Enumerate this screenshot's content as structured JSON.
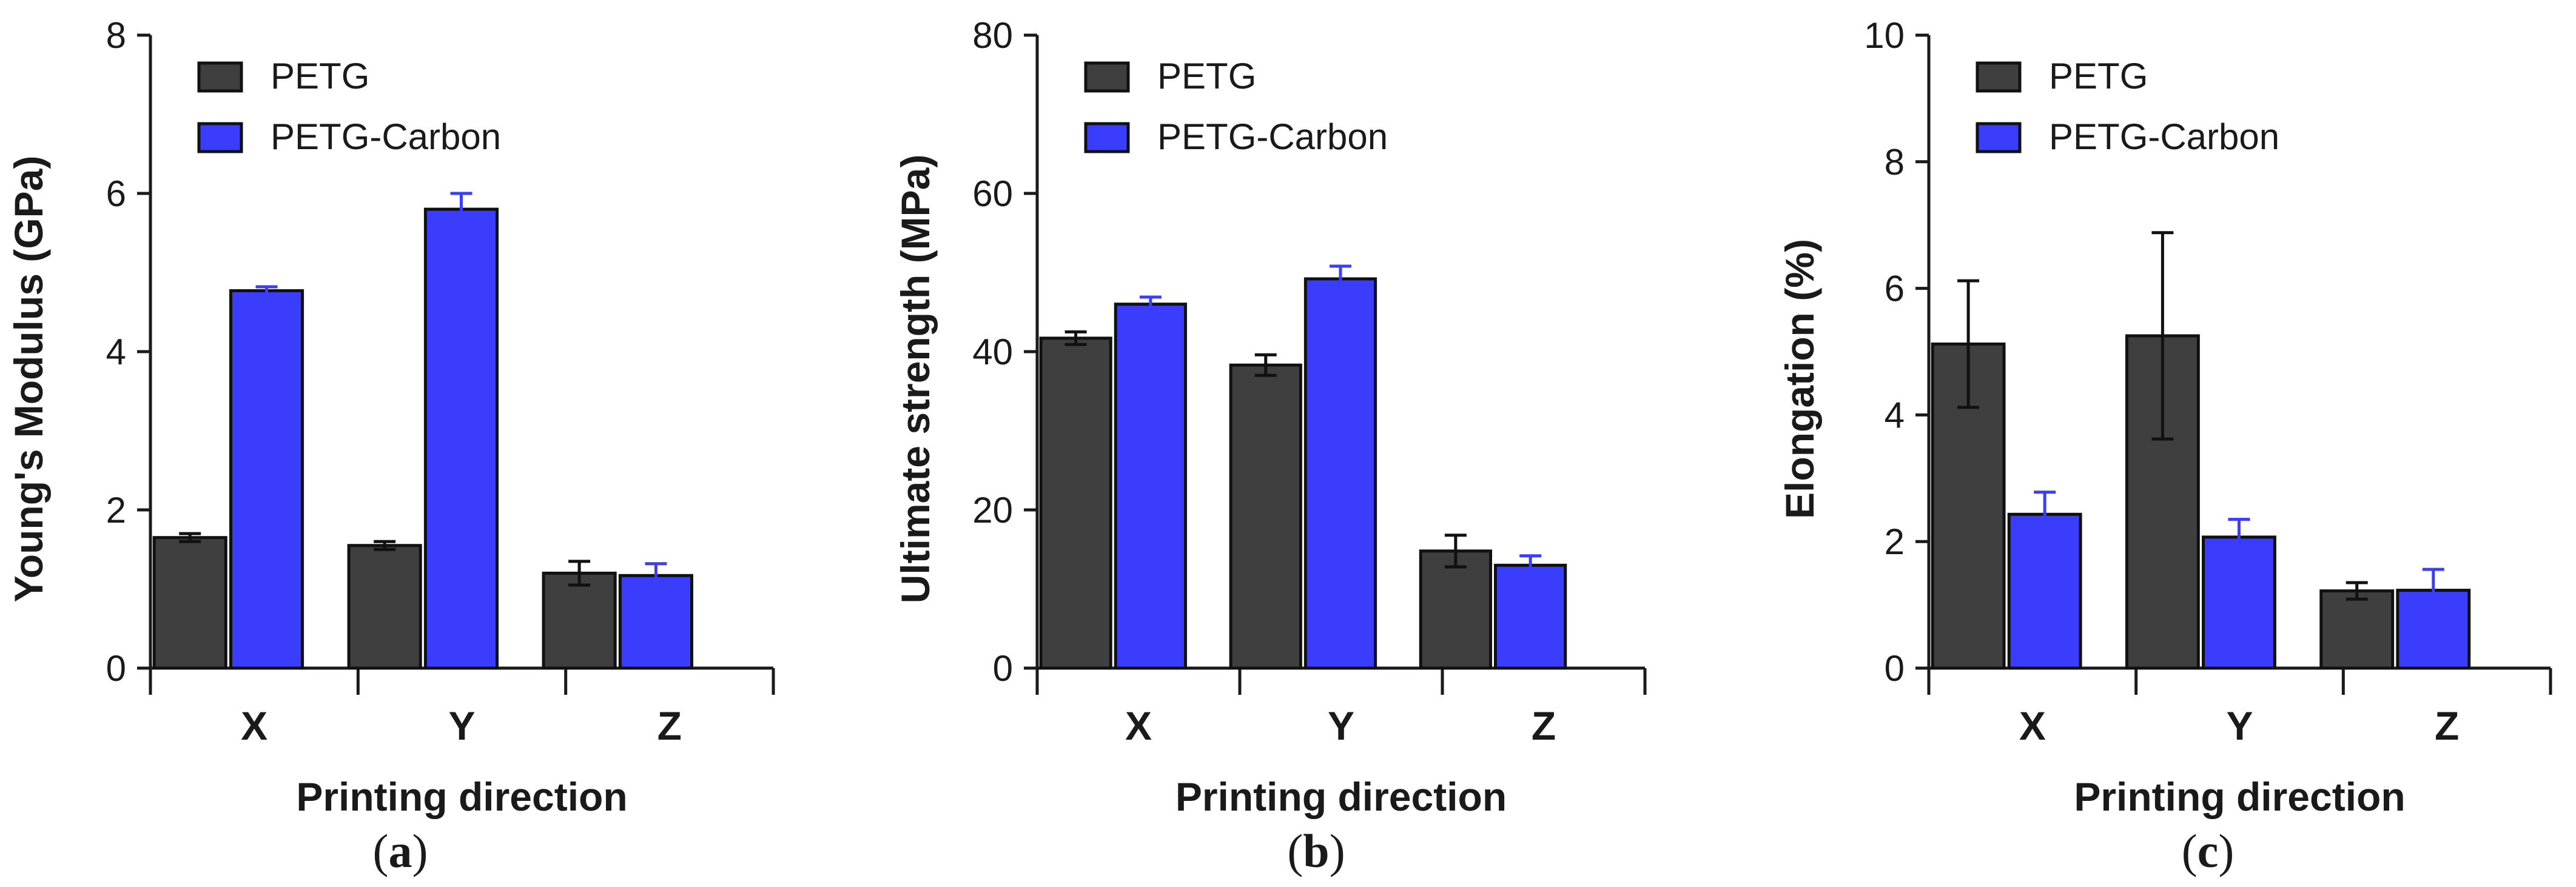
{
  "colors": {
    "PETG": "#3f3f3f",
    "PETG-Carbon": "#3a3dfb",
    "axis": "#1a1a1a"
  },
  "chart_data": [
    {
      "type": "bar",
      "panel": "a",
      "categories": [
        "X",
        "Y",
        "Z"
      ],
      "xlabel": "Printing direction",
      "ylabel": "Young's Modulus (GPa)",
      "ylim": [
        0,
        8
      ],
      "yticks": [
        0,
        2,
        4,
        6,
        8
      ],
      "grid": false,
      "legend_position": "top-left",
      "series": [
        {
          "name": "PETG",
          "values": [
            1.65,
            1.55,
            1.2
          ],
          "errors": [
            0.05,
            0.05,
            0.15
          ]
        },
        {
          "name": "PETG-Carbon",
          "values": [
            4.77,
            5.8,
            1.17
          ],
          "errors": [
            0.05,
            0.2,
            0.15
          ]
        }
      ]
    },
    {
      "type": "bar",
      "panel": "b",
      "categories": [
        "X",
        "Y",
        "Z"
      ],
      "xlabel": "Printing direction",
      "ylabel": "Ultimate strength (MPa)",
      "ylim": [
        0,
        80
      ],
      "yticks": [
        0,
        20,
        40,
        60,
        80
      ],
      "grid": false,
      "legend_position": "top-left",
      "series": [
        {
          "name": "PETG",
          "values": [
            41.7,
            38.3,
            14.8
          ],
          "errors": [
            0.8,
            1.3,
            2.0
          ]
        },
        {
          "name": "PETG-Carbon",
          "values": [
            46.0,
            49.2,
            13.0
          ],
          "errors": [
            0.9,
            1.6,
            1.2
          ]
        }
      ]
    },
    {
      "type": "bar",
      "panel": "c",
      "categories": [
        "X",
        "Y",
        "Z"
      ],
      "xlabel": "Printing direction",
      "ylabel": "Elongation (%)",
      "ylim": [
        0,
        10
      ],
      "yticks": [
        0,
        2,
        4,
        6,
        8,
        10
      ],
      "grid": false,
      "legend_position": "top-left",
      "series": [
        {
          "name": "PETG",
          "values": [
            5.12,
            5.25,
            1.22
          ],
          "errors": [
            1.0,
            1.63,
            0.13
          ]
        },
        {
          "name": "PETG-Carbon",
          "values": [
            2.43,
            2.07,
            1.23
          ],
          "errors": [
            0.35,
            0.28,
            0.33
          ]
        }
      ]
    }
  ],
  "panel_labels": [
    "a",
    "b",
    "c"
  ]
}
